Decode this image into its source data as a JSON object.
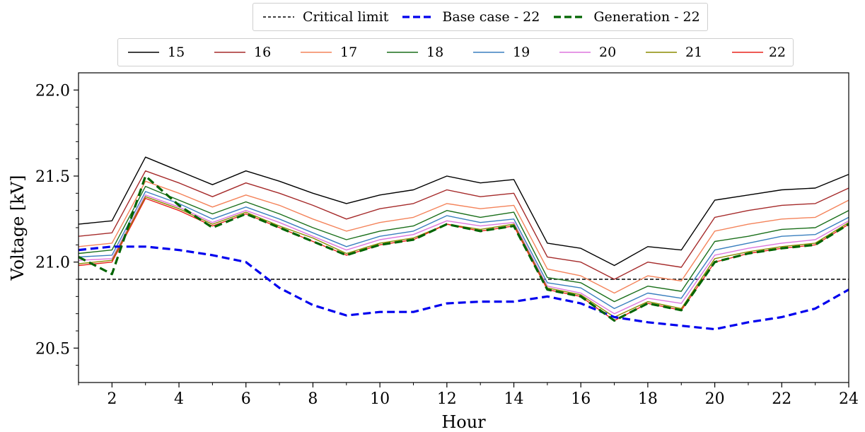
{
  "chart_data": {
    "type": "line",
    "xlabel": "Hour",
    "ylabel": "Voltage [kV]",
    "xlim": [
      1,
      24
    ],
    "ylim": [
      20.3,
      22.1
    ],
    "xticks": [
      2,
      4,
      6,
      8,
      10,
      12,
      14,
      16,
      18,
      20,
      22,
      24
    ],
    "yticks": [
      20.5,
      21.0,
      21.5,
      22.0
    ],
    "ytick_labels": [
      "20.5",
      "21.0",
      "21.5",
      "22.0"
    ],
    "grid": false,
    "x": [
      1,
      2,
      3,
      4,
      5,
      6,
      7,
      8,
      9,
      10,
      11,
      12,
      13,
      14,
      15,
      16,
      17,
      18,
      19,
      20,
      21,
      22,
      23,
      24
    ],
    "critical_limit": {
      "name": "Critical limit",
      "value": 20.9,
      "color": "#000000",
      "style": "dashed"
    },
    "series": [
      {
        "name": "15",
        "color": "#000000",
        "style": "solid",
        "values": [
          21.22,
          21.24,
          21.61,
          21.53,
          21.45,
          21.53,
          21.47,
          21.4,
          21.34,
          21.39,
          21.42,
          21.5,
          21.46,
          21.48,
          21.11,
          21.08,
          20.98,
          21.09,
          21.07,
          21.36,
          21.39,
          21.42,
          21.43,
          21.51
        ]
      },
      {
        "name": "16",
        "color": "#a52a2a",
        "style": "solid",
        "values": [
          21.15,
          21.17,
          21.53,
          21.46,
          21.38,
          21.46,
          21.4,
          21.33,
          21.25,
          21.31,
          21.34,
          21.42,
          21.38,
          21.4,
          21.03,
          21.0,
          20.9,
          21.0,
          20.97,
          21.26,
          21.3,
          21.33,
          21.34,
          21.43
        ]
      },
      {
        "name": "17",
        "color": "#f4835a",
        "style": "solid",
        "values": [
          21.09,
          21.11,
          21.47,
          21.4,
          21.32,
          21.39,
          21.33,
          21.25,
          21.18,
          21.23,
          21.26,
          21.34,
          21.31,
          21.33,
          20.96,
          20.92,
          20.82,
          20.92,
          20.89,
          21.18,
          21.22,
          21.25,
          21.26,
          21.36
        ]
      },
      {
        "name": "18",
        "color": "#1a6f1a",
        "style": "solid",
        "values": [
          21.05,
          21.07,
          21.44,
          21.36,
          21.28,
          21.35,
          21.28,
          21.2,
          21.13,
          21.18,
          21.21,
          21.3,
          21.26,
          21.29,
          20.91,
          20.88,
          20.77,
          20.86,
          20.83,
          21.12,
          21.15,
          21.19,
          21.2,
          21.3
        ]
      },
      {
        "name": "19",
        "color": "#3a7fbf",
        "style": "solid",
        "values": [
          21.03,
          21.04,
          21.41,
          21.34,
          21.25,
          21.32,
          21.25,
          21.17,
          21.09,
          21.15,
          21.18,
          21.27,
          21.23,
          21.25,
          20.88,
          20.85,
          20.73,
          20.82,
          20.79,
          21.07,
          21.11,
          21.15,
          21.16,
          21.26
        ]
      },
      {
        "name": "20",
        "color": "#dd77dd",
        "style": "solid",
        "values": [
          21.01,
          21.02,
          21.39,
          21.32,
          21.23,
          21.3,
          21.23,
          21.15,
          21.07,
          21.13,
          21.16,
          21.24,
          21.21,
          21.23,
          20.86,
          20.82,
          20.7,
          20.79,
          20.76,
          21.04,
          21.08,
          21.11,
          21.13,
          21.24
        ]
      },
      {
        "name": "21",
        "color": "#8b8b00",
        "style": "solid",
        "values": [
          20.99,
          21.01,
          21.38,
          21.31,
          21.22,
          21.29,
          21.21,
          21.14,
          21.05,
          21.11,
          21.14,
          21.22,
          21.19,
          21.22,
          20.85,
          20.81,
          20.68,
          20.77,
          20.73,
          21.02,
          21.06,
          21.09,
          21.11,
          21.23
        ]
      },
      {
        "name": "22",
        "color": "#e8231b",
        "style": "solid",
        "values": [
          20.98,
          21.0,
          21.37,
          21.3,
          21.21,
          21.28,
          21.2,
          21.12,
          21.04,
          21.1,
          21.13,
          21.22,
          21.18,
          21.21,
          20.84,
          20.8,
          20.66,
          20.76,
          20.72,
          21.0,
          21.05,
          21.08,
          21.1,
          21.22
        ]
      },
      {
        "name": "Base case - 22",
        "color": "#0000ee",
        "style": "dashed",
        "values": [
          21.07,
          21.09,
          21.09,
          21.07,
          21.04,
          21.0,
          20.85,
          20.75,
          20.69,
          20.71,
          20.71,
          20.76,
          20.77,
          20.77,
          20.8,
          20.76,
          20.68,
          20.65,
          20.63,
          20.61,
          20.65,
          20.68,
          20.73,
          20.84
        ]
      },
      {
        "name": "Generation - 22",
        "color": "#006400",
        "style": "dashed",
        "values": [
          21.03,
          20.93,
          21.5,
          21.33,
          21.2,
          21.28,
          21.2,
          21.12,
          21.04,
          21.1,
          21.13,
          21.22,
          21.18,
          21.21,
          20.84,
          20.8,
          20.66,
          20.76,
          20.72,
          21.0,
          21.05,
          21.08,
          21.1,
          21.22
        ]
      }
    ],
    "legend_top": [
      "Critical limit",
      "Base case - 22",
      "Generation - 22"
    ],
    "legend_bottom": [
      "15",
      "16",
      "17",
      "18",
      "19",
      "20",
      "21",
      "22"
    ]
  }
}
